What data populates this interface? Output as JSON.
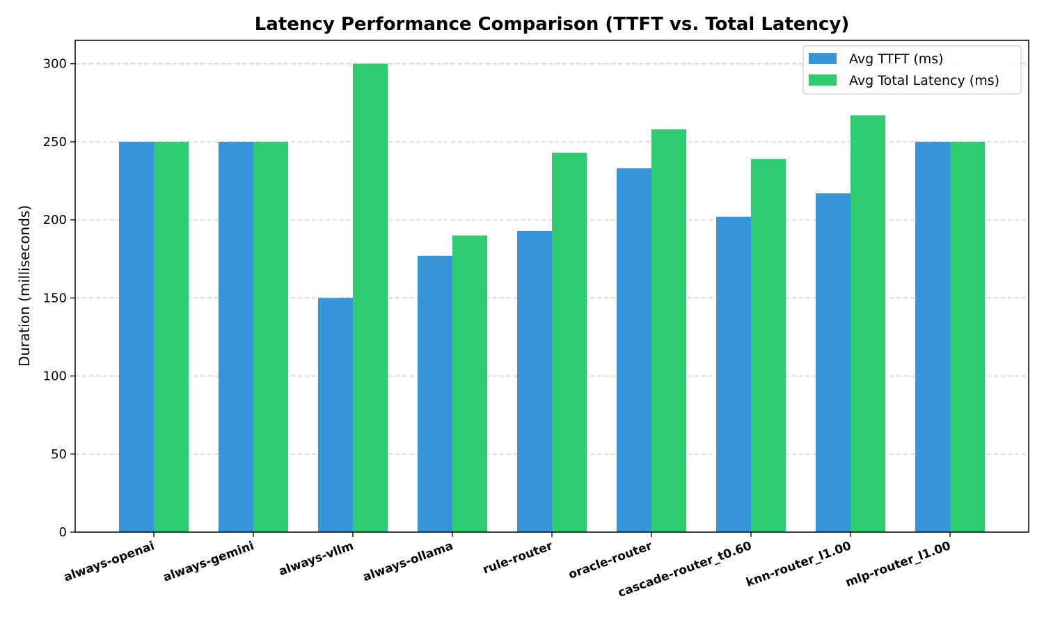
{
  "chart_data": {
    "type": "bar",
    "title": "Latency Performance Comparison (TTFT vs. Total Latency)",
    "xlabel": "",
    "ylabel": "Duration (milliseconds)",
    "ylim": [
      0,
      315
    ],
    "yticks": [
      0,
      50,
      100,
      150,
      200,
      250,
      300
    ],
    "grid": "y-dashed",
    "legend_position": "top-right",
    "categories": [
      "always-openai",
      "always-gemini",
      "always-vllm",
      "always-ollama",
      "rule-router",
      "oracle-router",
      "cascade-router_t0.60",
      "knn-router_l1.00",
      "mlp-router_l1.00"
    ],
    "series": [
      {
        "name": "Avg TTFT (ms)",
        "color": "#3796db",
        "values": [
          250,
          250,
          150,
          177,
          193,
          233,
          202,
          217,
          250
        ]
      },
      {
        "name": "Avg Total Latency (ms)",
        "color": "#2ecc71",
        "values": [
          250,
          250,
          300,
          190,
          243,
          258,
          239,
          267,
          250
        ]
      }
    ]
  }
}
